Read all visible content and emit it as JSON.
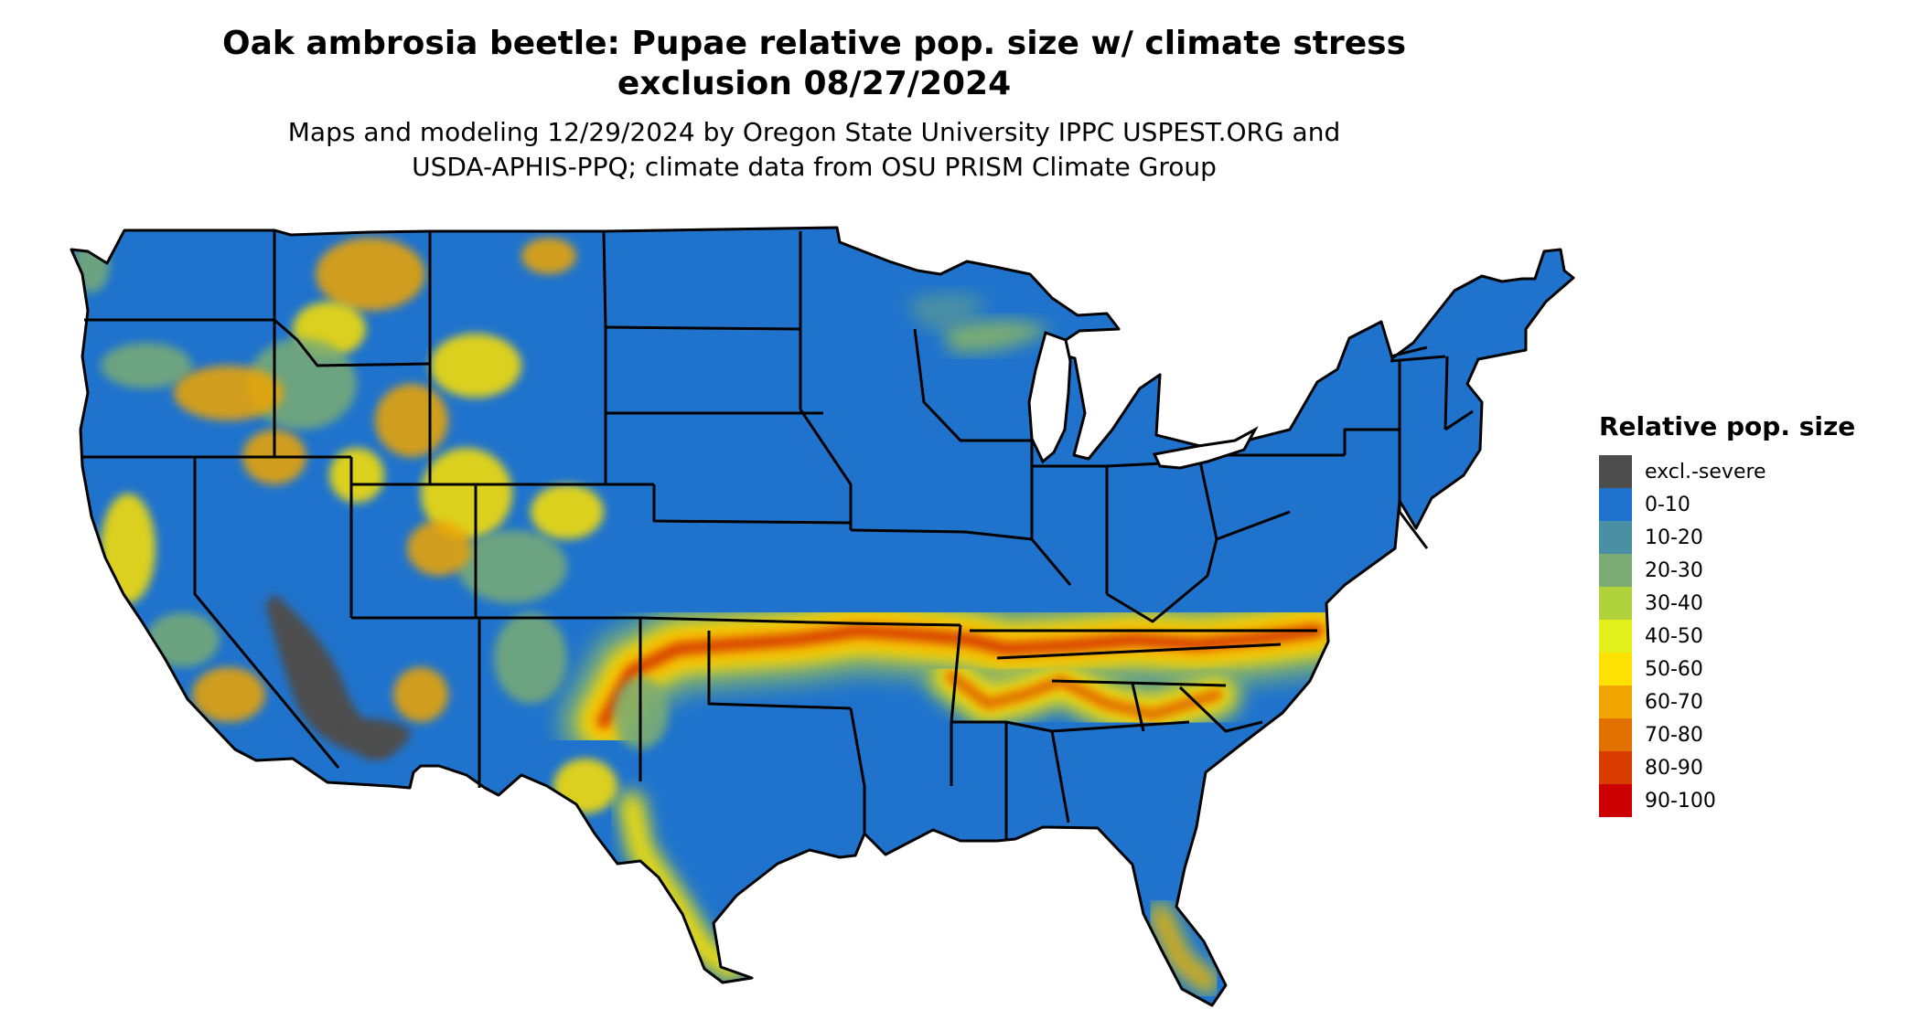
{
  "header": {
    "title_line1": "Oak ambrosia beetle: Pupae relative pop. size w/ climate stress",
    "title_line2": "exclusion 08/27/2024",
    "subtitle_line1": "Maps and modeling 12/29/2024 by Oregon State University IPPC USPEST.ORG and",
    "subtitle_line2": "USDA-APHIS-PPQ; climate data from OSU PRISM Climate Group"
  },
  "legend": {
    "title": "Relative pop. size",
    "items": [
      {
        "label": "excl.-severe",
        "color": "#4d4d4d"
      },
      {
        "label": "0-10",
        "color": "#1f73cd"
      },
      {
        "label": "10-20",
        "color": "#4a8fa4"
      },
      {
        "label": "20-30",
        "color": "#7aac73"
      },
      {
        "label": "30-40",
        "color": "#b0d33b"
      },
      {
        "label": "40-50",
        "color": "#e2f01d"
      },
      {
        "label": "50-60",
        "color": "#fde100"
      },
      {
        "label": "60-70",
        "color": "#f0a500"
      },
      {
        "label": "70-80",
        "color": "#e07000"
      },
      {
        "label": "80-90",
        "color": "#d83c00"
      },
      {
        "label": "90-100",
        "color": "#cc0000"
      }
    ]
  },
  "map": {
    "base_color": "#1f73cd",
    "border_color": "#000000"
  }
}
